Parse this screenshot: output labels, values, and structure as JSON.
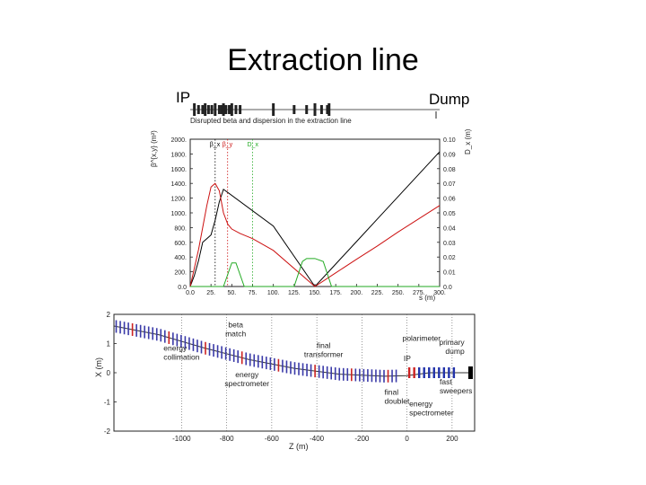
{
  "slide": {
    "title": "Extraction line",
    "label_left": "IP",
    "label_right": "Dump"
  },
  "chart_data": [
    {
      "type": "line",
      "title": "Disrupted beta and dispersion in the extraction line",
      "xlabel": "s (m)",
      "ylabel": "β^{x,y} (m²)",
      "y2label": "D_x (m)",
      "xlim": [
        0,
        300
      ],
      "ylim": [
        0,
        2000
      ],
      "y2lim": [
        0,
        0.1
      ],
      "x_ticks": [
        "0.0",
        "25.",
        "50.",
        "75.",
        "100.",
        "125.",
        "150.",
        "175.",
        "200.",
        "225.",
        "250.",
        "275.",
        "300."
      ],
      "y_ticks": [
        "0.0",
        "200.",
        "400.",
        "600.",
        "800.",
        "1000.",
        "1200.",
        "1400.",
        "1600.",
        "1800.",
        "2000."
      ],
      "y2_ticks": [
        "0.0",
        "0.01",
        "0.02",
        "0.03",
        "0.04",
        "0.05",
        "0.06",
        "0.07",
        "0.08",
        "0.09",
        "0.10"
      ],
      "legend_labels": [
        "β_x",
        "β_y",
        "D_x"
      ],
      "series": [
        {
          "name": "β_x",
          "color": "#000000",
          "axis": "left",
          "x": [
            0,
            5,
            10,
            15,
            20,
            25,
            30,
            35,
            40,
            100,
            150,
            175,
            200,
            225,
            250,
            275,
            300
          ],
          "y": [
            0,
            150,
            350,
            600,
            650,
            700,
            900,
            1150,
            1320,
            820,
            0,
            305,
            610,
            915,
            1220,
            1525,
            1830
          ]
        },
        {
          "name": "β_y",
          "color": "#cc1111",
          "axis": "left",
          "x": [
            0,
            5,
            10,
            15,
            20,
            25,
            30,
            35,
            40,
            45,
            50,
            60,
            75,
            100,
            150,
            175,
            200,
            225,
            250,
            275,
            300
          ],
          "y": [
            0,
            250,
            500,
            800,
            1100,
            1350,
            1400,
            1300,
            1000,
            850,
            780,
            720,
            650,
            490,
            0,
            185,
            370,
            550,
            740,
            920,
            1100
          ]
        },
        {
          "name": "D_x",
          "color": "#22aa22",
          "axis": "right",
          "x": [
            0,
            40,
            45,
            50,
            55,
            60,
            65,
            70,
            75,
            125,
            135,
            140,
            150,
            160,
            170,
            300
          ],
          "y": [
            0,
            0,
            0.008,
            0.016,
            0.016,
            0.008,
            0,
            0,
            0,
            0,
            0.017,
            0.019,
            0.019,
            0.017,
            0,
            0
          ]
        }
      ]
    },
    {
      "type": "line",
      "xlabel": "Z (m)",
      "ylabel": "X (m)",
      "xlim": [
        -1300,
        300
      ],
      "ylim": [
        -2,
        2
      ],
      "x_ticks": [
        -1000,
        -800,
        -600,
        -400,
        -200,
        0,
        200
      ],
      "y_ticks": [
        2,
        1,
        0,
        -1,
        -2
      ],
      "annotations": [
        "beta match",
        "energy collimation",
        "energy spectrometer",
        "final transformer",
        "polarimeter",
        "IP",
        "primary dump",
        "final doublet",
        "energy spectrometer",
        "fast sweepers"
      ],
      "series": [
        {
          "name": "beamline",
          "x": [
            -1300,
            -1100,
            -900,
            -700,
            -500,
            -300,
            -100,
            0,
            100,
            280
          ],
          "y": [
            1.6,
            1.3,
            0.85,
            0.45,
            0.15,
            -0.05,
            -0.12,
            -0.1,
            0,
            0
          ]
        }
      ]
    }
  ],
  "lattice_strip": {
    "magnets_s": [
      5,
      10,
      15,
      18,
      22,
      26,
      30,
      35,
      38,
      40,
      43,
      47,
      50,
      55,
      60,
      100,
      125,
      140,
      150,
      158,
      165,
      167
    ]
  }
}
